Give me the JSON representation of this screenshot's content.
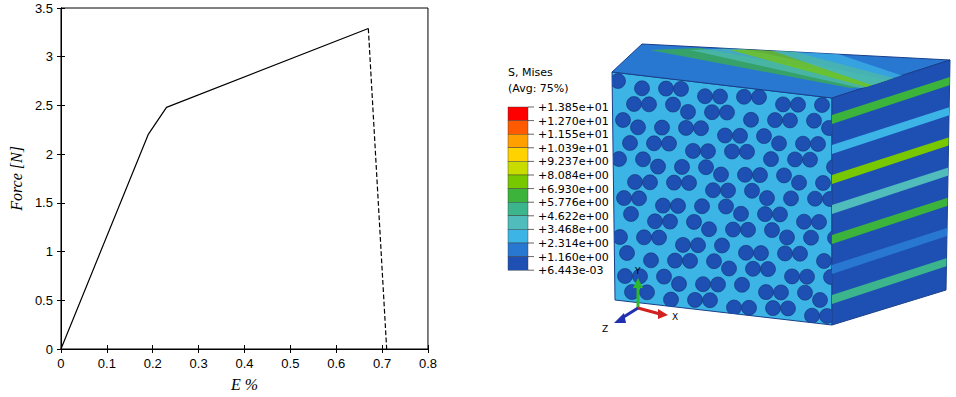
{
  "chart_data": {
    "type": "line",
    "x_label": "E %",
    "y_label": "Force [N]",
    "xlim": [
      0,
      0.8
    ],
    "xticks": [
      0,
      0.1,
      0.2,
      0.3,
      0.4,
      0.5,
      0.6,
      0.7,
      0.8
    ],
    "ylim": [
      0,
      3.5
    ],
    "yticks": [
      0,
      0.5,
      1,
      1.5,
      2,
      2.5,
      3,
      3.5
    ],
    "grid": false,
    "series": [
      {
        "color": "#000000",
        "line_style": "solid",
        "x": [
          0,
          0.19,
          0.23,
          0.67
        ],
        "values": [
          0,
          2.2,
          2.48,
          3.29
        ]
      },
      {
        "color": "#000000",
        "line_style": "dashed",
        "x": [
          0.67,
          0.71
        ],
        "values": [
          3.29,
          0
        ]
      }
    ]
  },
  "contour": {
    "title": "S, Mises",
    "subtitle": "(Avg: 75%)",
    "colorbar": {
      "ticks": [
        {
          "value": 13.85,
          "label": "+1.385e+01"
        },
        {
          "value": 12.7,
          "label": "+1.270e+01"
        },
        {
          "value": 11.55,
          "label": "+1.155e+01"
        },
        {
          "value": 10.39,
          "label": "+1.039e+01"
        },
        {
          "value": 9.237,
          "label": "+9.237e+00"
        },
        {
          "value": 8.084,
          "label": "+8.084e+00"
        },
        {
          "value": 6.93,
          "label": "+6.930e+00"
        },
        {
          "value": 5.776,
          "label": "+5.776e+00"
        },
        {
          "value": 4.622,
          "label": "+4.622e+00"
        },
        {
          "value": 3.468,
          "label": "+3.468e+00"
        },
        {
          "value": 2.314,
          "label": "+2.314e+00"
        },
        {
          "value": 1.16,
          "label": "+1.160e+00"
        },
        {
          "value": 0.006443,
          "label": "+6.443e-03"
        }
      ],
      "colors": [
        "#ff0000",
        "#ff5a00",
        "#ffa000",
        "#ffd200",
        "#c8dc00",
        "#78c800",
        "#3cb43c",
        "#3cb48c",
        "#50bcbc",
        "#3cb4e6",
        "#2878d2",
        "#1e50b4"
      ]
    },
    "triad": [
      "Y",
      "Z",
      "X"
    ]
  }
}
